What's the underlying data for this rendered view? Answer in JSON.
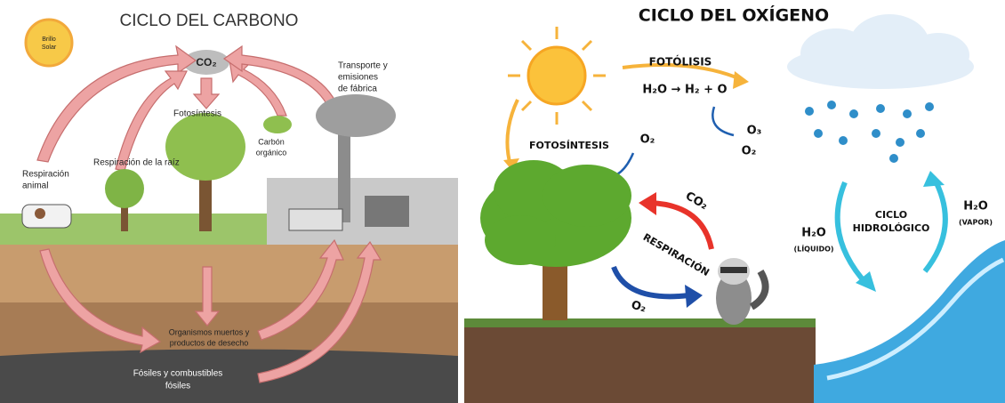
{
  "carbon_cycle": {
    "title": "CICLO DEL CARBONO",
    "sun_label": [
      "Brillo",
      "Solar"
    ],
    "co2": "CO₂",
    "transport": [
      "Transporte y",
      "emisiones",
      "de fábrica"
    ],
    "photosynthesis": "Fotosíntesis",
    "organic_carbon": [
      "Carbón",
      "orgánico"
    ],
    "root_respiration": "Respiración de la raíz",
    "animal_respiration": [
      "Respiración",
      "animal"
    ],
    "dead_organisms": [
      "Organismos muertos y",
      "productos de desecho"
    ],
    "fossils": [
      "Fósiles y combustibles",
      "fósiles"
    ]
  },
  "oxygen_cycle": {
    "title": "CICLO DEL OXÍGENO",
    "photolysis": "FOTÓLISIS",
    "equation": "H₂O → H₂ + O",
    "o3": "O₃",
    "o2_upper": "O₂",
    "photosynthesis": "FOTOSÍNTESIS",
    "o2_tree": "O₂",
    "co2": "CO₂",
    "respiration": "RESPIRACIÓN",
    "o2_lower": "O₂",
    "hydro_cycle": [
      "CICLO",
      "HIDROLÓGICO"
    ],
    "h2o_liquid": [
      "H₂O",
      "(LÍQUIDO)"
    ],
    "h2o_vapor": [
      "H₂O",
      "(VAPOR)"
    ]
  }
}
